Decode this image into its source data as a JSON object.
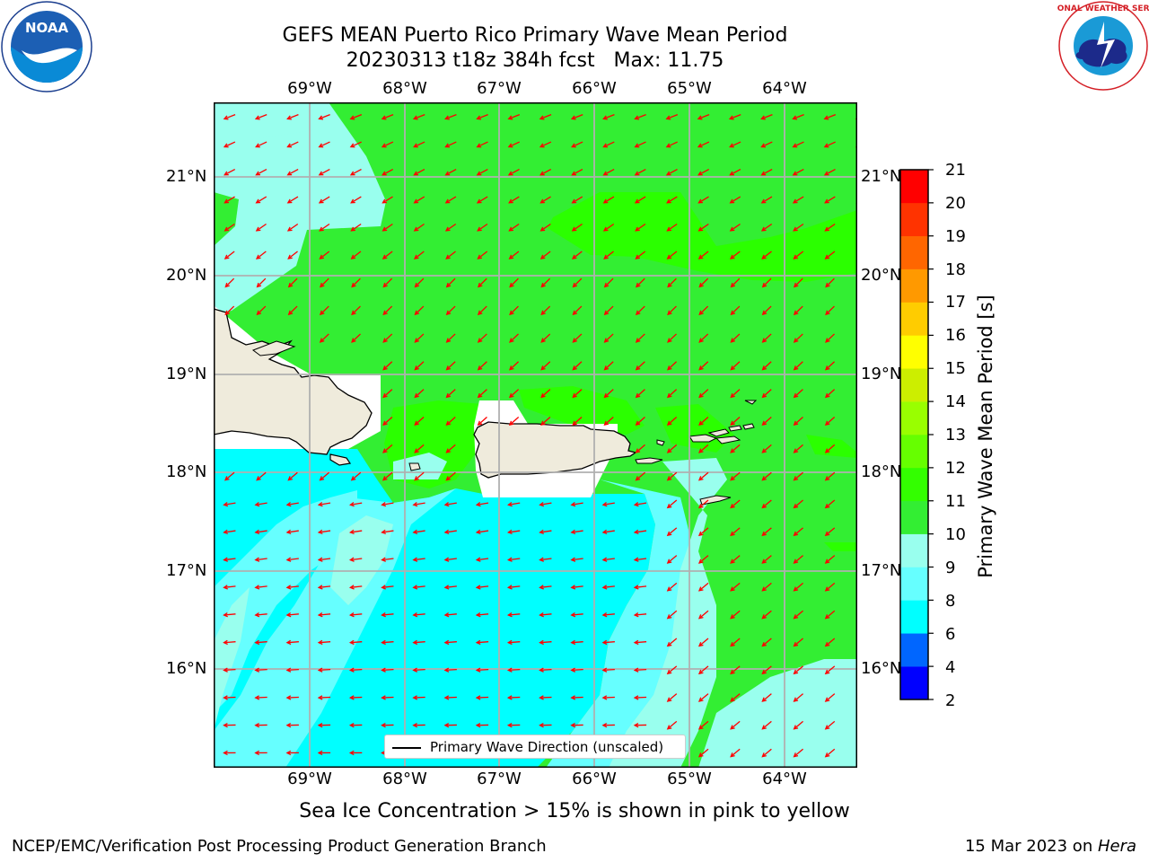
{
  "header": {
    "title_line1": "GEFS MEAN Puerto Rico Primary Wave Mean Period",
    "title_line2": "20230313 t18z 384h fcst   Max: 11.75"
  },
  "logos": {
    "noaa_text": "NOAA",
    "nws_text": "NATIONAL WEATHER SERVICE"
  },
  "axes": {
    "lon_labels": [
      "69°W",
      "68°W",
      "67°W",
      "66°W",
      "65°W",
      "64°W"
    ],
    "lat_labels": [
      "21°N",
      "20°N",
      "19°N",
      "18°N",
      "17°N",
      "16°N"
    ]
  },
  "colorbar": {
    "label": "Primary Wave Mean Period [s]",
    "ticks": [
      "21",
      "20",
      "19",
      "18",
      "17",
      "16",
      "15",
      "14",
      "13",
      "12",
      "11",
      "10",
      "9",
      "8",
      "6",
      "4",
      "2"
    ],
    "colors_bottom_to_top": [
      "#0000ff",
      "#0066ff",
      "#00ffff",
      "#66ffff",
      "#99ffee",
      "#33ee33",
      "#33ff00",
      "#66ff00",
      "#99ff00",
      "#ccee00",
      "#ffff00",
      "#ffcc00",
      "#ff9900",
      "#ff6600",
      "#ff3300",
      "#ff0000"
    ]
  },
  "legend": {
    "label": "Primary Wave Direction (unscaled)"
  },
  "map": {
    "region": "Puerto Rico",
    "arrow_color": "#ff0000",
    "land_color": "#efebdc",
    "max_period": 11.75
  },
  "note": "Sea Ice Concentration > 15% is shown in pink to yellow",
  "footer": {
    "left": "NCEP/EMC/Verification Post Processing Product Generation Branch",
    "right_prefix": "15 Mar 2023 on ",
    "right_host": "Hera"
  }
}
